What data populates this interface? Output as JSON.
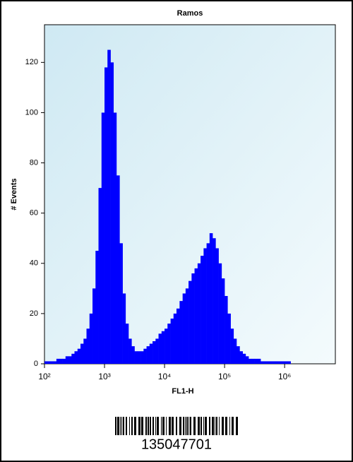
{
  "chart_data": {
    "type": "histogram",
    "title": "Ramos",
    "xlabel": "FL1-H",
    "ylabel": "# Events",
    "xscale": "log",
    "color": "#0000ff",
    "xlim": [
      100,
      7000000
    ],
    "ylim": [
      0,
      135
    ],
    "xticks": [
      {
        "value": 100,
        "label": "10²"
      },
      {
        "value": 1000,
        "label": "10³"
      },
      {
        "value": 10000,
        "label": "10⁴"
      },
      {
        "value": 100000,
        "label": "10⁵"
      },
      {
        "value": 1000000,
        "label": "10⁶"
      }
    ],
    "yticks": [
      0,
      20,
      40,
      60,
      80,
      100,
      120
    ],
    "bins": [
      100,
      112,
      126,
      141,
      158,
      178,
      200,
      224,
      251,
      282,
      316,
      355,
      398,
      447,
      501,
      562,
      631,
      708,
      794,
      891,
      1000,
      1120,
      1260,
      1410,
      1580,
      1780,
      2000,
      2240,
      2510,
      2820,
      3160,
      3550,
      3980,
      4470,
      5010,
      5620,
      6310,
      7080,
      7940,
      8910,
      10000,
      11200,
      12600,
      14100,
      15800,
      17800,
      20000,
      22400,
      25100,
      28200,
      31600,
      35500,
      39800,
      44700,
      50100,
      56200,
      63100,
      70800,
      79400,
      89100,
      100000,
      112000,
      126000,
      141000,
      158000,
      178000,
      200000,
      224000,
      251000,
      282000,
      316000,
      355000,
      398000,
      447000,
      501000,
      562000,
      631000,
      708000,
      794000,
      891000,
      1000000,
      1120000,
      1260000,
      1410000,
      1580000,
      1780000,
      2000000,
      2240000,
      2510000,
      2820000,
      3160000,
      3550000,
      3980000,
      4470000,
      5010000,
      5620000,
      6310000
    ],
    "values": [
      1,
      1,
      1,
      1,
      2,
      2,
      2,
      3,
      3,
      4,
      5,
      6,
      8,
      10,
      14,
      20,
      30,
      45,
      70,
      100,
      118,
      125,
      120,
      100,
      75,
      48,
      28,
      16,
      10,
      7,
      5,
      5,
      5,
      6,
      7,
      8,
      9,
      10,
      12,
      13,
      14,
      16,
      18,
      20,
      22,
      25,
      28,
      30,
      33,
      36,
      38,
      40,
      43,
      46,
      48,
      52,
      50,
      46,
      40,
      34,
      27,
      20,
      14,
      10,
      7,
      5,
      4,
      3,
      2,
      2,
      2,
      2,
      1,
      1,
      1,
      1,
      1,
      1,
      1,
      1,
      1,
      1,
      0,
      0,
      0,
      0,
      0,
      0,
      0,
      0,
      0,
      0,
      0,
      0,
      0,
      0
    ]
  },
  "barcode_text": "135047701"
}
